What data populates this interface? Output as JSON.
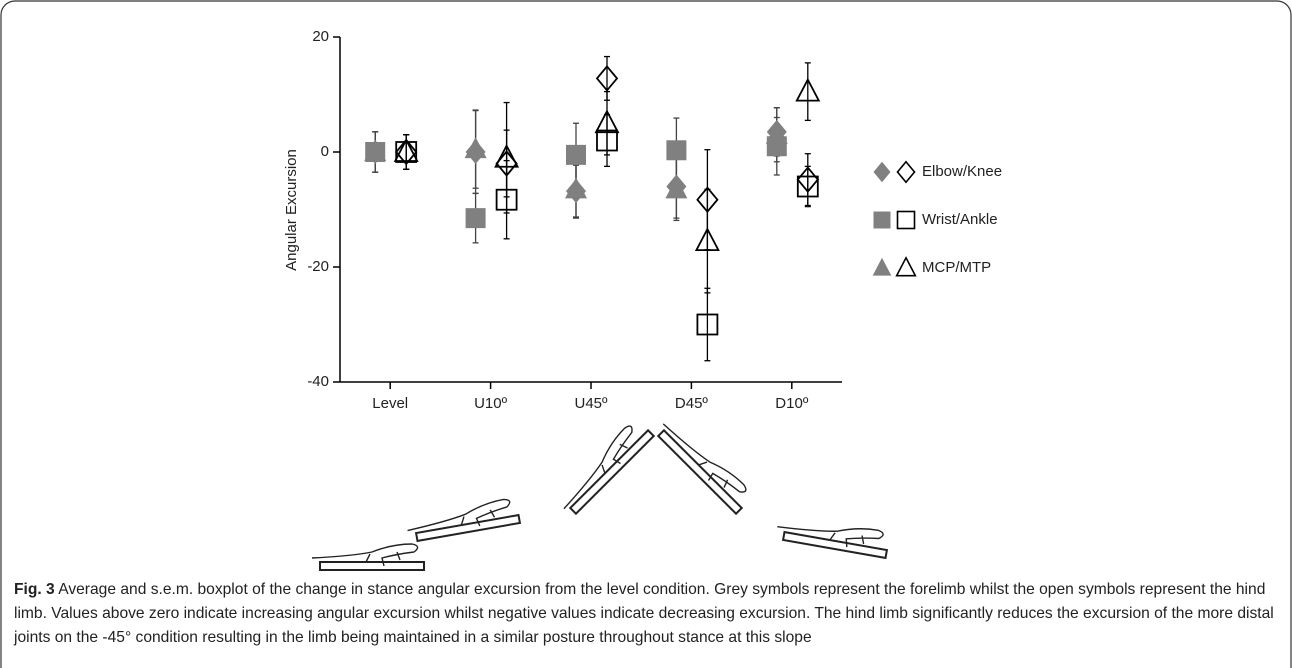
{
  "chart_data": {
    "type": "errorbar-scatter",
    "ylabel": "Angular Excursion",
    "categories": [
      "Level",
      "U10º",
      "U45º",
      "D45º",
      "D10º"
    ],
    "ylim": [
      -40,
      20
    ],
    "yticks": [
      -40,
      -20,
      0,
      20
    ],
    "forelimb_color": "#808080",
    "hindlimb_color": "#000000",
    "series": [
      {
        "name": "Elbow/Knee",
        "marker": "diamond",
        "forelimb": {
          "values": [
            0,
            0,
            -6.8,
            -6,
            3.5
          ],
          "errors": [
            3.5,
            7.2,
            4.5,
            5.5,
            4.2
          ]
        },
        "hindlimb": {
          "values": [
            0,
            -2,
            12.8,
            -8.3,
            -4.8
          ],
          "errors": [
            3,
            5.8,
            3.8,
            8.7,
            4.5
          ]
        }
      },
      {
        "name": "Wrist/Ankle",
        "marker": "square",
        "forelimb": {
          "values": [
            0,
            -11.5,
            -0.5,
            0.3,
            1
          ],
          "errors": [
            3.5,
            4.3,
            5.5,
            5.6,
            5
          ]
        },
        "hindlimb": {
          "values": [
            0,
            -8.3,
            2,
            -30,
            -6
          ],
          "errors": [
            3,
            6.8,
            4.5,
            6.3,
            3.5
          ]
        }
      },
      {
        "name": "MCP/MTP",
        "marker": "triangle",
        "forelimb": {
          "values": [
            0,
            0.5,
            -6.5,
            -6.5,
            3
          ],
          "errors": [
            3.5,
            6.8,
            5,
            5.4,
            4.7
          ]
        },
        "hindlimb": {
          "values": [
            0,
            -1,
            5,
            -15.5,
            10.5
          ],
          "errors": [
            3,
            9.6,
            5.5,
            9,
            5
          ]
        }
      }
    ]
  },
  "caption": {
    "label": "Fig. 3",
    "text": "Average and s.e.m. boxplot of the change in stance angular excursion from the level condition. Grey symbols represent the forelimb whilst the open symbols represent the hind limb. Values above zero indicate increasing angular excursion whilst negative values indicate decreasing excursion. The hind limb significantly reduces the excursion of the more distal joints on the -45° condition resulting in the limb being maintained in a similar posture throughout stance at this slope"
  }
}
